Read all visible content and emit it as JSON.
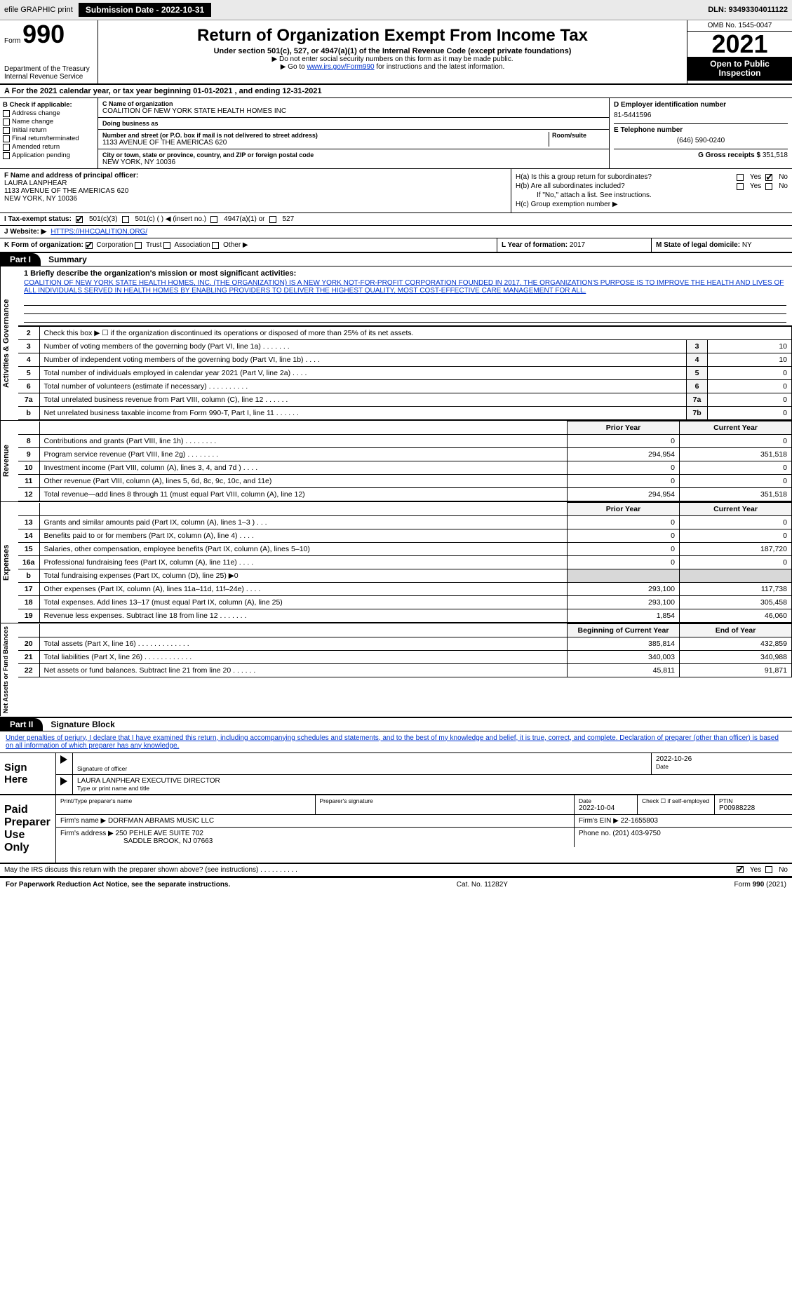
{
  "topbar": {
    "efile_label": "efile GRAPHIC print",
    "submission_label": "Submission Date - 2022-10-31",
    "dln": "DLN: 93493304011122"
  },
  "header": {
    "form_prefix": "Form",
    "form_number": "990",
    "dept1": "Department of the Treasury",
    "dept2": "Internal Revenue Service",
    "title": "Return of Organization Exempt From Income Tax",
    "subtitle": "Under section 501(c), 527, or 4947(a)(1) of the Internal Revenue Code (except private foundations)",
    "note1": "▶ Do not enter social security numbers on this form as it may be made public.",
    "note2_pre": "▶ Go to ",
    "note2_link": "www.irs.gov/Form990",
    "note2_post": " for instructions and the latest information.",
    "omb": "OMB No. 1545-0047",
    "year": "2021",
    "open_public": "Open to Public Inspection"
  },
  "line_A": "A For the 2021 calendar year, or tax year beginning 01-01-2021   , and ending 12-31-2021",
  "box_B": {
    "header": "B Check if applicable:",
    "items": [
      "Address change",
      "Name change",
      "Initial return",
      "Final return/terminated",
      "Amended return",
      "Application pending"
    ]
  },
  "box_C": {
    "name_lbl": "C Name of organization",
    "name": "COALITION OF NEW YORK STATE HEALTH HOMES INC",
    "dba_lbl": "Doing business as",
    "addr_lbl": "Number and street (or P.O. box if mail is not delivered to street address)",
    "room_lbl": "Room/suite",
    "addr": "1133 AVENUE OF THE AMERICAS 620",
    "city_lbl": "City or town, state or province, country, and ZIP or foreign postal code",
    "city": "NEW YORK, NY  10036"
  },
  "box_D": {
    "ein_lbl": "D Employer identification number",
    "ein": "81-5441596",
    "phone_lbl": "E Telephone number",
    "phone": "(646) 590-0240",
    "gross_lbl": "G Gross receipts $",
    "gross": "351,518"
  },
  "box_F": {
    "lbl": "F Name and address of principal officer:",
    "name": "LAURA LANPHEAR",
    "addr1": "1133 AVENUE OF THE AMERICAS 620",
    "addr2": "NEW YORK, NY  10036"
  },
  "box_H": {
    "a_lbl": "H(a)  Is this a group return for subordinates?",
    "b_lbl": "H(b)  Are all subordinates included?",
    "b_note": "If \"No,\" attach a list. See instructions.",
    "c_lbl": "H(c)  Group exemption number ▶"
  },
  "line_I": {
    "lbl": "I   Tax-exempt status:",
    "opts": [
      "501(c)(3)",
      "501(c) (  ) ◀ (insert no.)",
      "4947(a)(1) or",
      "527"
    ]
  },
  "line_J": {
    "lbl": "J   Website: ▶",
    "url": "HTTPS://HHCOALITION.ORG/"
  },
  "line_K": {
    "lbl": "K Form of organization:",
    "opts": [
      "Corporation",
      "Trust",
      "Association",
      "Other ▶"
    ]
  },
  "line_L": {
    "lbl": "L Year of formation:",
    "val": "2017"
  },
  "line_M": {
    "lbl": "M State of legal domicile:",
    "val": "NY"
  },
  "part1": {
    "num": "Part I",
    "title": "Summary"
  },
  "mission": {
    "lbl": "1  Briefly describe the organization's mission or most significant activities:",
    "text": "COALITION OF NEW YORK STATE HEALTH HOMES, INC. (THE ORGANIZATION) IS A NEW YORK NOT-FOR-PROFIT CORPORATION FOUNDED IN 2017. THE ORGANIZATION'S PURPOSE IS TO IMPROVE THE HEALTH AND LIVES OF ALL INDIVIDUALS SERVED IN HEALTH HOMES BY ENABLING PROVIDERS TO DELIVER THE HIGHEST QUALITY, MOST COST-EFFECTIVE CARE MANAGEMENT FOR ALL."
  },
  "side_labels": {
    "gov": "Activities & Governance",
    "rev": "Revenue",
    "exp": "Expenses",
    "net": "Net Assets or Fund Balances"
  },
  "gov_rows": [
    {
      "n": "2",
      "t": "Check this box ▶ ☐ if the organization discontinued its operations or disposed of more than 25% of its net assets."
    },
    {
      "n": "3",
      "t": "Number of voting members of the governing body (Part VI, line 1a)   .   .   .   .   .   .   .",
      "b": "3",
      "v": "10"
    },
    {
      "n": "4",
      "t": "Number of independent voting members of the governing body (Part VI, line 1b)   .   .   .   .",
      "b": "4",
      "v": "10"
    },
    {
      "n": "5",
      "t": "Total number of individuals employed in calendar year 2021 (Part V, line 2a)   .   .   .   .",
      "b": "5",
      "v": "0"
    },
    {
      "n": "6",
      "t": "Total number of volunteers (estimate if necessary)    .    .    .    .    .    .    .    .    .    .",
      "b": "6",
      "v": "0"
    },
    {
      "n": "7a",
      "t": "Total unrelated business revenue from Part VIII, column (C), line 12   .   .   .   .   .   .",
      "b": "7a",
      "v": "0"
    },
    {
      "n": "b",
      "t": "Net unrelated business taxable income from Form 990-T, Part I, line 11   .   .   .   .   .   .",
      "b": "7b",
      "v": "0"
    }
  ],
  "col_heads": {
    "py": "Prior Year",
    "cy": "Current Year"
  },
  "rev_rows": [
    {
      "n": "8",
      "t": "Contributions and grants (Part VIII, line 1h)   .   .   .   .   .   .   .   .",
      "py": "0",
      "cy": "0"
    },
    {
      "n": "9",
      "t": "Program service revenue (Part VIII, line 2g)   .   .   .   .   .   .   .   .",
      "py": "294,954",
      "cy": "351,518"
    },
    {
      "n": "10",
      "t": "Investment income (Part VIII, column (A), lines 3, 4, and 7d )   .   .   .   .",
      "py": "0",
      "cy": "0"
    },
    {
      "n": "11",
      "t": "Other revenue (Part VIII, column (A), lines 5, 6d, 8c, 9c, 10c, and 11e)",
      "py": "0",
      "cy": "0"
    },
    {
      "n": "12",
      "t": "Total revenue—add lines 8 through 11 (must equal Part VIII, column (A), line 12)",
      "py": "294,954",
      "cy": "351,518"
    }
  ],
  "exp_rows": [
    {
      "n": "13",
      "t": "Grants and similar amounts paid (Part IX, column (A), lines 1–3 )   .   .   .",
      "py": "0",
      "cy": "0"
    },
    {
      "n": "14",
      "t": "Benefits paid to or for members (Part IX, column (A), line 4)   .   .   .   .",
      "py": "0",
      "cy": "0"
    },
    {
      "n": "15",
      "t": "Salaries, other compensation, employee benefits (Part IX, column (A), lines 5–10)",
      "py": "0",
      "cy": "187,720"
    },
    {
      "n": "16a",
      "t": "Professional fundraising fees (Part IX, column (A), line 11e)   .   .   .   .",
      "py": "0",
      "cy": "0"
    },
    {
      "n": "b",
      "t": "Total fundraising expenses (Part IX, column (D), line 25) ▶0",
      "shade": true
    },
    {
      "n": "17",
      "t": "Other expenses (Part IX, column (A), lines 11a–11d, 11f–24e)   .   .   .   .",
      "py": "293,100",
      "cy": "117,738"
    },
    {
      "n": "18",
      "t": "Total expenses. Add lines 13–17 (must equal Part IX, column (A), line 25)",
      "py": "293,100",
      "cy": "305,458"
    },
    {
      "n": "19",
      "t": "Revenue less expenses. Subtract line 18 from line 12   .   .   .   .   .   .   .",
      "py": "1,854",
      "cy": "46,060"
    }
  ],
  "net_heads": {
    "py": "Beginning of Current Year",
    "cy": "End of Year"
  },
  "net_rows": [
    {
      "n": "20",
      "t": "Total assets (Part X, line 16)   .   .   .   .   .   .   .   .   .   .  .   .   .",
      "py": "385,814",
      "cy": "432,859"
    },
    {
      "n": "21",
      "t": "Total liabilities (Part X, line 26)   .   .   .   .   .   .   .   .   .   .   .   .",
      "py": "340,003",
      "cy": "340,988"
    },
    {
      "n": "22",
      "t": "Net assets or fund balances. Subtract line 21 from line 20  .   .   .   .   .   .",
      "py": "45,811",
      "cy": "91,871"
    }
  ],
  "part2": {
    "num": "Part II",
    "title": "Signature Block"
  },
  "sig_intro": "Under penalties of perjury, I declare that I have examined this return, including accompanying schedules and statements, and to the best of my knowledge and belief, it is true, correct, and complete. Declaration of preparer (other than officer) is based on all information of which preparer has any knowledge.",
  "sign_here": {
    "side": "Sign Here",
    "sig_lbl": "Signature of officer",
    "date": "2022-10-26",
    "date_lbl": "Date",
    "name": "LAURA LANPHEAR  EXECUTIVE DIRECTOR",
    "name_lbl": "Type or print name and title"
  },
  "paid_prep": {
    "side": "Paid Preparer Use Only",
    "h1": "Print/Type preparer's name",
    "h2": "Preparer's signature",
    "h3": "Date",
    "date": "2022-10-04",
    "h4": "Check ☐ if self-employed",
    "h5": "PTIN",
    "ptin": "P00988228",
    "firm_name_lbl": "Firm's name    ▶",
    "firm_name": "DORFMAN ABRAMS MUSIC LLC",
    "firm_ein_lbl": "Firm's EIN ▶",
    "firm_ein": "22-1655803",
    "firm_addr_lbl": "Firm's address ▶",
    "firm_addr1": "250 PEHLE AVE SUITE 702",
    "firm_addr2": "SADDLE BROOK, NJ  07663",
    "phone_lbl": "Phone no.",
    "phone": "(201) 403-9750"
  },
  "discuss": {
    "q": "May the IRS discuss this return with the preparer shown above? (see instructions)   .   .   .   .   .   .   .   .   .   .",
    "yes": "Yes",
    "no": "No"
  },
  "footer": {
    "l": "For Paperwork Reduction Act Notice, see the separate instructions.",
    "c": "Cat. No. 11282Y",
    "r": "Form 990 (2021)"
  }
}
